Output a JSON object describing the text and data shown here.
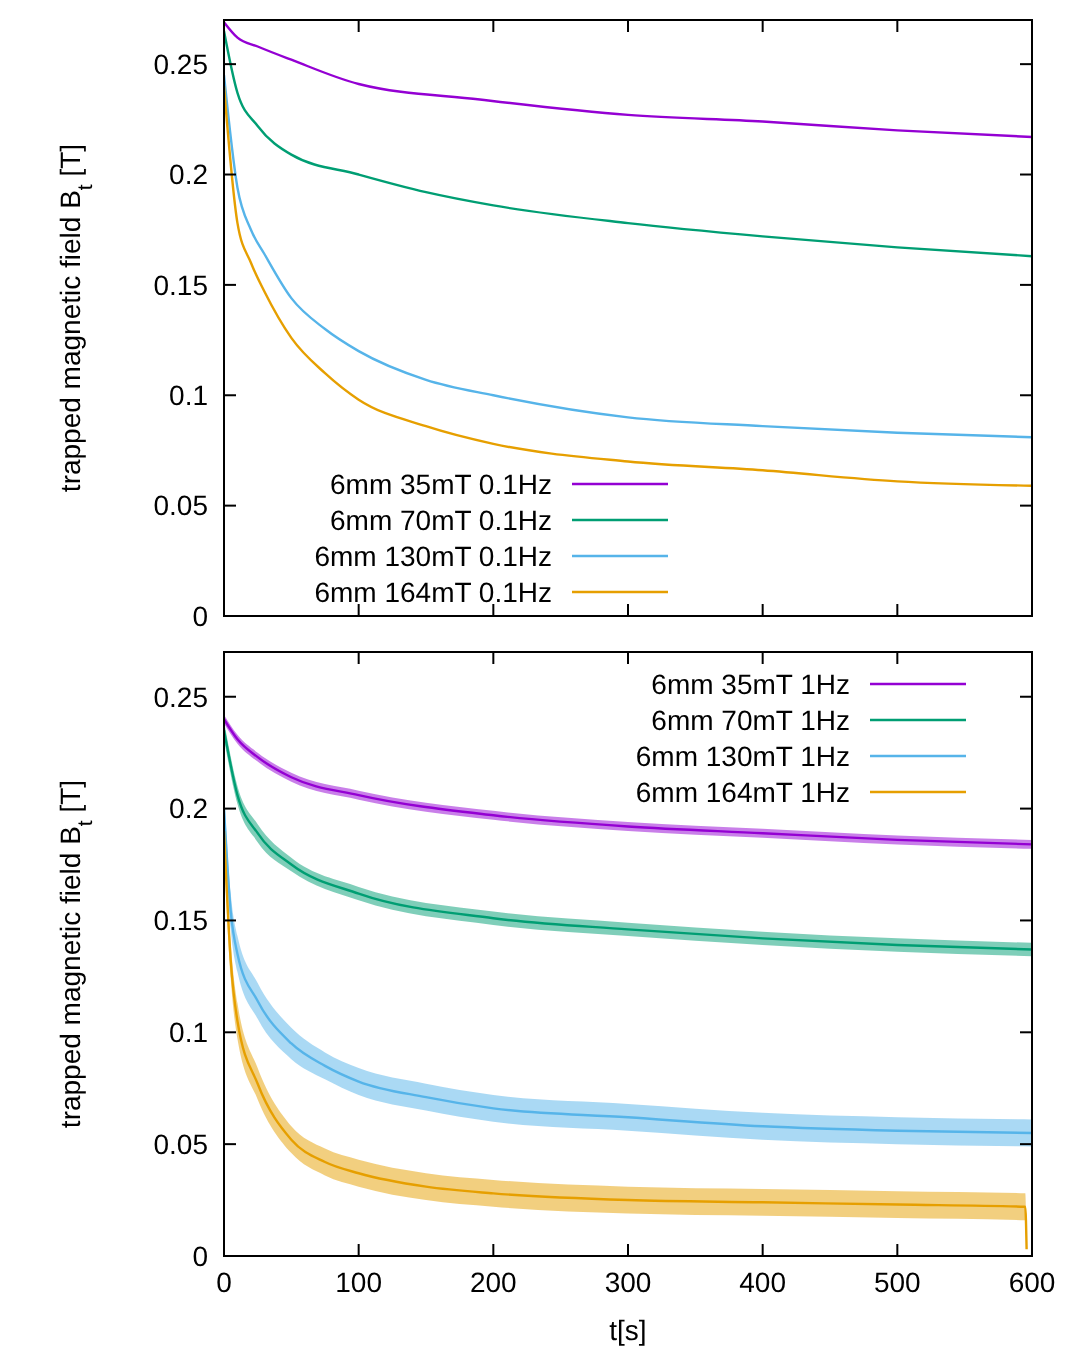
{
  "chart_data": [
    {
      "type": "line",
      "ylabel": "trapped magnetic field B$_{t}$ [T]",
      "xlim": [
        0,
        600
      ],
      "xticks": [
        0,
        100,
        200,
        300,
        400,
        500,
        600
      ],
      "ylim": [
        0,
        0.27
      ],
      "yticks": [
        0,
        0.05,
        0.1,
        0.15,
        0.2,
        0.25
      ],
      "tick_labels": "y",
      "grid": false,
      "legend": "bottom left",
      "line_style": "solid",
      "marker": "none",
      "series": [
        {
          "name": "6mm 35mT 0.1Hz",
          "color": "#9400d3",
          "x": [
            0,
            10,
            25,
            50,
            100,
            190,
            300,
            400,
            500,
            600
          ],
          "values": [
            0.269,
            0.262,
            0.258,
            0.252,
            0.241,
            0.234,
            0.227,
            0.224,
            0.22,
            0.217
          ]
        },
        {
          "name": "6mm 70mT 0.1Hz",
          "color": "#009e73",
          "x": [
            0,
            10,
            25,
            50,
            100,
            150,
            200,
            300,
            400,
            500,
            600
          ],
          "values": [
            0.265,
            0.237,
            0.222,
            0.209,
            0.2,
            0.192,
            0.186,
            0.178,
            0.172,
            0.167,
            0.163
          ]
        },
        {
          "name": "6mm 130mT 0.1Hz",
          "color": "#56b4e9",
          "x": [
            0,
            10,
            20,
            30,
            50,
            75,
            100,
            150,
            200,
            300,
            400,
            500,
            600
          ],
          "values": [
            0.245,
            0.194,
            0.175,
            0.164,
            0.144,
            0.13,
            0.12,
            0.107,
            0.1,
            0.09,
            0.086,
            0.083,
            0.081
          ]
        },
        {
          "name": "6mm 164mT 0.1Hz",
          "color": "#e69f00",
          "x": [
            0,
            10,
            20,
            30,
            50,
            75,
            100,
            150,
            200,
            300,
            400,
            500,
            600
          ],
          "values": [
            0.24,
            0.178,
            0.16,
            0.147,
            0.126,
            0.11,
            0.098,
            0.086,
            0.078,
            0.07,
            0.066,
            0.061,
            0.059
          ]
        }
      ]
    },
    {
      "type": "line",
      "xlabel": "t[s]",
      "ylabel": "trapped magnetic field B$_{t}$ [T]",
      "xlim": [
        0,
        600
      ],
      "xticks": [
        0,
        100,
        200,
        300,
        400,
        500,
        600
      ],
      "ylim": [
        0,
        0.27
      ],
      "yticks": [
        0,
        0.05,
        0.1,
        0.15,
        0.2,
        0.25
      ],
      "grid": false,
      "legend": "top right",
      "line_style": "solid",
      "marker": "none",
      "series": [
        {
          "name": "6mm 35mT 1Hz",
          "color": "#9400d3",
          "x": [
            0,
            10,
            25,
            50,
            100,
            200,
            300,
            400,
            500,
            600
          ],
          "values": [
            0.24,
            0.231,
            0.223,
            0.214,
            0.206,
            0.197,
            0.192,
            0.189,
            0.186,
            0.184
          ],
          "lower": [
            0.238,
            0.229,
            0.221,
            0.212,
            0.204,
            0.195,
            0.19,
            0.187,
            0.184,
            0.182
          ],
          "upper": [
            0.242,
            0.233,
            0.225,
            0.216,
            0.208,
            0.199,
            0.194,
            0.191,
            0.188,
            0.186
          ]
        },
        {
          "name": "6mm 70mT 1Hz",
          "color": "#009e73",
          "x": [
            0,
            10,
            25,
            50,
            100,
            200,
            300,
            400,
            500,
            600
          ],
          "values": [
            0.235,
            0.206,
            0.189,
            0.175,
            0.162,
            0.151,
            0.146,
            0.142,
            0.139,
            0.137
          ],
          "lower": [
            0.231,
            0.202,
            0.185,
            0.172,
            0.159,
            0.148,
            0.143,
            0.139,
            0.136,
            0.134
          ],
          "upper": [
            0.239,
            0.21,
            0.193,
            0.178,
            0.165,
            0.154,
            0.149,
            0.145,
            0.142,
            0.14
          ]
        },
        {
          "name": "6mm 130mT 1Hz",
          "color": "#56b4e9",
          "x": [
            0,
            5,
            10,
            25,
            50,
            75,
            100,
            150,
            200,
            300,
            400,
            500,
            600
          ],
          "values": [
            0.2,
            0.154,
            0.135,
            0.114,
            0.095,
            0.085,
            0.078,
            0.071,
            0.066,
            0.062,
            0.058,
            0.056,
            0.055
          ],
          "lower": [
            0.192,
            0.146,
            0.127,
            0.106,
            0.088,
            0.079,
            0.072,
            0.065,
            0.06,
            0.056,
            0.052,
            0.05,
            0.049
          ],
          "upper": [
            0.208,
            0.162,
            0.143,
            0.122,
            0.102,
            0.091,
            0.084,
            0.077,
            0.072,
            0.068,
            0.064,
            0.062,
            0.061
          ]
        },
        {
          "name": "6mm 164mT 1Hz",
          "color": "#e69f00",
          "x": [
            0,
            5,
            10,
            25,
            50,
            75,
            100,
            150,
            200,
            300,
            400,
            500,
            595,
            596
          ],
          "values": [
            0.19,
            0.132,
            0.105,
            0.077,
            0.052,
            0.042,
            0.037,
            0.031,
            0.028,
            0.025,
            0.024,
            0.023,
            0.022,
            0.003
          ],
          "lower": [
            0.182,
            0.124,
            0.097,
            0.07,
            0.046,
            0.036,
            0.031,
            0.025,
            0.022,
            0.019,
            0.018,
            0.017,
            0.016,
            0.003
          ],
          "upper": [
            0.198,
            0.14,
            0.113,
            0.084,
            0.058,
            0.048,
            0.043,
            0.037,
            0.034,
            0.031,
            0.03,
            0.029,
            0.028,
            0.003
          ]
        }
      ]
    }
  ]
}
